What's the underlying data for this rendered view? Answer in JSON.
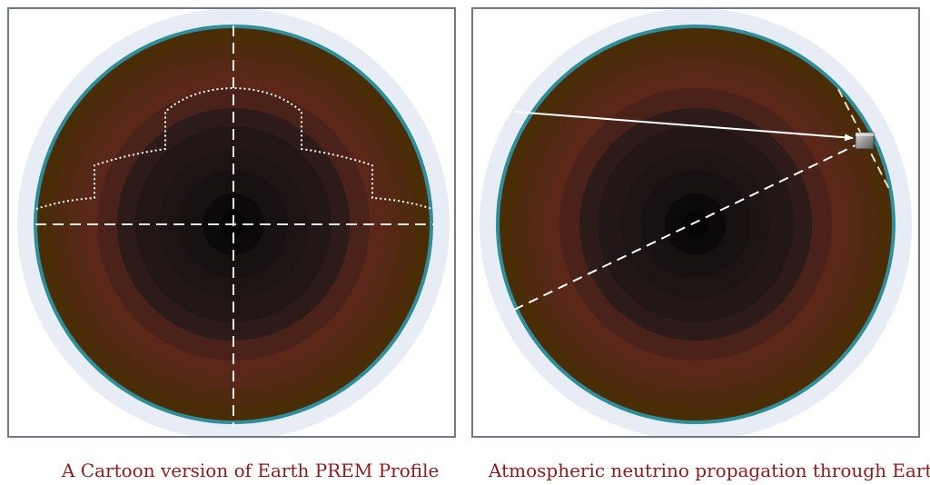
{
  "panels": [
    {
      "caption": "A Cartoon version of Earth PREM Profile"
    },
    {
      "caption": "Atmospheric neutrino propagation through Earth"
    }
  ],
  "colors": {
    "caption": "#8e1b1b",
    "frame_border": "#6f7a86",
    "atmosphere": "#e8edf5",
    "crust_rim": "#2e8f9a",
    "outer_shell": "#4a2d07",
    "mantle_mid": "#5a2718",
    "core_outer": "#1d1414",
    "core_inner": "#050505",
    "overlay_lines": "#ffffff"
  },
  "icons": {
    "detector": "detector-box-icon"
  }
}
